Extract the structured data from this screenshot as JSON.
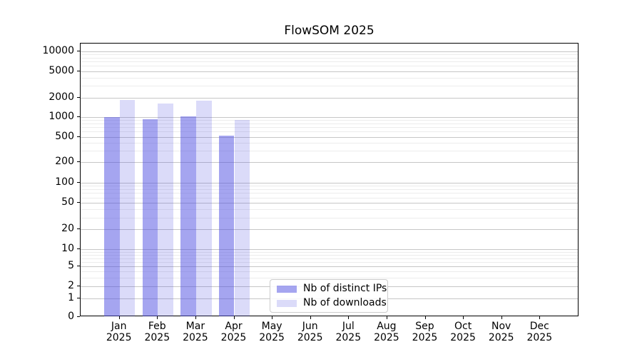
{
  "figure": {
    "title": "FlowSOM 2025",
    "background_color": "#ffffff"
  },
  "chart_data": {
    "type": "bar",
    "title": "FlowSOM 2025",
    "xlabel": "",
    "ylabel": "",
    "categories": [
      "Jan 2025",
      "Feb 2025",
      "Mar 2025",
      "Apr 2025",
      "May 2025",
      "Jun 2025",
      "Jul 2025",
      "Aug 2025",
      "Sep 2025",
      "Oct 2025",
      "Nov 2025",
      "Dec 2025"
    ],
    "x_tick_months": [
      "Jan",
      "Feb",
      "Mar",
      "Apr",
      "May",
      "Jun",
      "Jul",
      "Aug",
      "Sep",
      "Oct",
      "Nov",
      "Dec"
    ],
    "x_tick_year": "2025",
    "series": [
      {
        "name": "Nb of distinct IPs",
        "color": "rgba(75,75,225,0.5)",
        "values": [
          1005,
          930,
          1030,
          518,
          null,
          null,
          null,
          null,
          null,
          null,
          null,
          null
        ]
      },
      {
        "name": "Nb of downloads",
        "color": "rgba(75,75,225,0.2)",
        "values": [
          1820,
          1600,
          1780,
          895,
          null,
          null,
          null,
          null,
          null,
          null,
          null,
          null
        ]
      }
    ],
    "y_axis": {
      "scale": "symlog",
      "tick_values": [
        10000,
        5000,
        2000,
        1000,
        500,
        200,
        100,
        50,
        20,
        10,
        5,
        2,
        1,
        0
      ],
      "tick_labels": [
        "10000",
        "5000",
        "2000",
        "1000",
        "500",
        "200",
        "100",
        "50",
        "20",
        "10",
        "5",
        "2",
        "1",
        "0"
      ],
      "range": [
        0,
        10000
      ]
    },
    "grid": {
      "major_color": "#c6c6c6",
      "minor_color": "#ececec",
      "minor_subs": [
        3,
        4,
        6,
        7,
        8,
        9
      ]
    },
    "legend": {
      "entries": [
        "Nb of distinct IPs",
        "Nb of downloads"
      ],
      "position": "lower center"
    }
  }
}
